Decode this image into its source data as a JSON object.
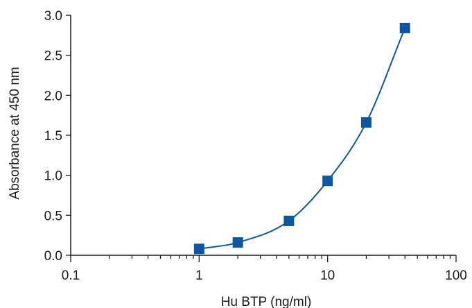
{
  "chart_data": {
    "type": "scatter",
    "title": "",
    "xlabel": "Hu BTP (ng/ml)",
    "ylabel": "Absorbance at 450 nm",
    "x_scale": "log",
    "xlim": [
      0.1,
      100
    ],
    "ylim": [
      0.0,
      3.0
    ],
    "x_ticks": [
      0.1,
      1,
      10,
      100
    ],
    "x_tick_labels": [
      "0.1",
      "1",
      "10",
      "100"
    ],
    "y_ticks": [
      0.0,
      0.5,
      1.0,
      1.5,
      2.0,
      2.5,
      3.0
    ],
    "y_tick_labels": [
      "0.0",
      "0.5",
      "1.0",
      "1.5",
      "2.0",
      "2.5",
      "3.0"
    ],
    "grid": false,
    "legend": "none",
    "marker": "square",
    "fit_line": "smooth curve through points",
    "color": "#0b57a4",
    "series": [
      {
        "x": [
          1,
          2,
          5,
          10,
          20,
          40
        ],
        "y": [
          0.08,
          0.16,
          0.43,
          0.93,
          1.66,
          2.84
        ]
      }
    ]
  }
}
